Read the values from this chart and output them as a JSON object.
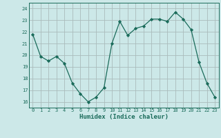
{
  "x": [
    0,
    1,
    2,
    3,
    4,
    5,
    6,
    7,
    8,
    9,
    10,
    11,
    12,
    13,
    14,
    15,
    16,
    17,
    18,
    19,
    20,
    21,
    22,
    23
  ],
  "y": [
    21.8,
    19.9,
    19.5,
    19.9,
    19.3,
    17.6,
    16.7,
    16.0,
    16.4,
    17.2,
    21.0,
    22.9,
    21.7,
    22.3,
    22.5,
    23.1,
    23.1,
    22.9,
    23.7,
    23.1,
    22.2,
    19.4,
    17.6,
    16.4
  ],
  "line_color": "#1a6b5a",
  "marker": "D",
  "marker_size": 2.2,
  "bg_color": "#cce8e8",
  "grid_color": "#aabbbb",
  "xlabel": "Humidex (Indice chaleur)",
  "ylim": [
    15.5,
    24.5
  ],
  "xlim": [
    -0.5,
    23.5
  ],
  "yticks": [
    16,
    17,
    18,
    19,
    20,
    21,
    22,
    23,
    24
  ],
  "xticks": [
    0,
    1,
    2,
    3,
    4,
    5,
    6,
    7,
    8,
    9,
    10,
    11,
    12,
    13,
    14,
    15,
    16,
    17,
    18,
    19,
    20,
    21,
    22,
    23
  ],
  "font_color": "#1a6b5a",
  "tick_fontsize": 5.0,
  "xlabel_fontsize": 6.5,
  "linewidth": 0.9
}
